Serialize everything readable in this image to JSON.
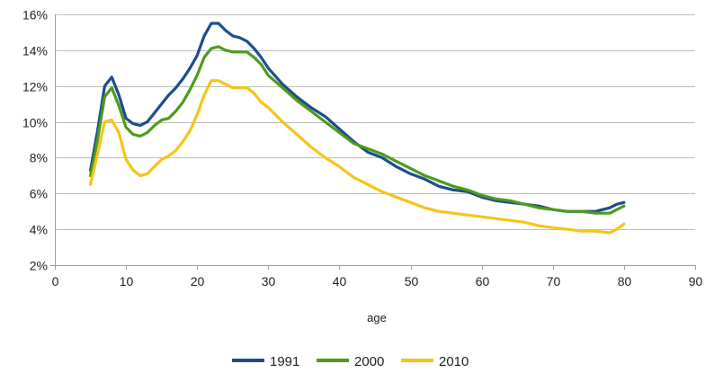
{
  "chart_data": {
    "type": "line",
    "title": "",
    "xlabel": "age",
    "ylabel": "",
    "xlim": [
      0,
      90
    ],
    "ylim": [
      2,
      16
    ],
    "x_ticks": [
      0,
      10,
      20,
      30,
      40,
      50,
      60,
      70,
      80,
      90
    ],
    "y_ticks": [
      2,
      4,
      6,
      8,
      10,
      12,
      14,
      16
    ],
    "y_tick_suffix": "%",
    "grid": "horizontal",
    "legend_position": "bottom",
    "series": [
      {
        "name": "1991",
        "color": "#1d4e89",
        "points": [
          [
            5,
            7.3
          ],
          [
            6,
            9.5
          ],
          [
            7,
            12.0
          ],
          [
            8,
            12.5
          ],
          [
            9,
            11.5
          ],
          [
            10,
            10.2
          ],
          [
            11,
            9.9
          ],
          [
            12,
            9.8
          ],
          [
            13,
            10.0
          ],
          [
            14,
            10.5
          ],
          [
            15,
            11.0
          ],
          [
            16,
            11.5
          ],
          [
            17,
            11.9
          ],
          [
            18,
            12.4
          ],
          [
            19,
            13.0
          ],
          [
            20,
            13.7
          ],
          [
            21,
            14.8
          ],
          [
            22,
            15.5
          ],
          [
            23,
            15.5
          ],
          [
            24,
            15.1
          ],
          [
            25,
            14.8
          ],
          [
            26,
            14.7
          ],
          [
            27,
            14.5
          ],
          [
            28,
            14.1
          ],
          [
            29,
            13.6
          ],
          [
            30,
            13.0
          ],
          [
            32,
            12.1
          ],
          [
            34,
            11.4
          ],
          [
            36,
            10.8
          ],
          [
            38,
            10.3
          ],
          [
            40,
            9.6
          ],
          [
            42,
            8.9
          ],
          [
            44,
            8.3
          ],
          [
            46,
            8.0
          ],
          [
            48,
            7.5
          ],
          [
            50,
            7.1
          ],
          [
            52,
            6.8
          ],
          [
            54,
            6.4
          ],
          [
            56,
            6.2
          ],
          [
            58,
            6.1
          ],
          [
            60,
            5.8
          ],
          [
            62,
            5.6
          ],
          [
            64,
            5.5
          ],
          [
            66,
            5.4
          ],
          [
            68,
            5.3
          ],
          [
            70,
            5.1
          ],
          [
            72,
            5.0
          ],
          [
            74,
            5.0
          ],
          [
            76,
            5.0
          ],
          [
            78,
            5.2
          ],
          [
            79,
            5.4
          ],
          [
            80,
            5.5
          ]
        ]
      },
      {
        "name": "2000",
        "color": "#4e9a1e",
        "points": [
          [
            5,
            7.0
          ],
          [
            6,
            9.0
          ],
          [
            7,
            11.4
          ],
          [
            8,
            11.9
          ],
          [
            9,
            10.9
          ],
          [
            10,
            9.7
          ],
          [
            11,
            9.3
          ],
          [
            12,
            9.2
          ],
          [
            13,
            9.4
          ],
          [
            14,
            9.8
          ],
          [
            15,
            10.1
          ],
          [
            16,
            10.2
          ],
          [
            17,
            10.6
          ],
          [
            18,
            11.1
          ],
          [
            19,
            11.8
          ],
          [
            20,
            12.6
          ],
          [
            21,
            13.6
          ],
          [
            22,
            14.1
          ],
          [
            23,
            14.2
          ],
          [
            24,
            14.0
          ],
          [
            25,
            13.9
          ],
          [
            26,
            13.9
          ],
          [
            27,
            13.9
          ],
          [
            28,
            13.6
          ],
          [
            29,
            13.2
          ],
          [
            30,
            12.6
          ],
          [
            32,
            11.9
          ],
          [
            34,
            11.2
          ],
          [
            36,
            10.6
          ],
          [
            38,
            10.0
          ],
          [
            40,
            9.4
          ],
          [
            42,
            8.8
          ],
          [
            44,
            8.5
          ],
          [
            46,
            8.2
          ],
          [
            48,
            7.8
          ],
          [
            50,
            7.4
          ],
          [
            52,
            7.0
          ],
          [
            54,
            6.7
          ],
          [
            56,
            6.4
          ],
          [
            58,
            6.2
          ],
          [
            60,
            5.9
          ],
          [
            62,
            5.7
          ],
          [
            64,
            5.6
          ],
          [
            66,
            5.4
          ],
          [
            68,
            5.2
          ],
          [
            70,
            5.1
          ],
          [
            72,
            5.0
          ],
          [
            74,
            5.0
          ],
          [
            76,
            4.9
          ],
          [
            78,
            4.9
          ],
          [
            79,
            5.1
          ],
          [
            80,
            5.3
          ]
        ]
      },
      {
        "name": "2010",
        "color": "#f5c518",
        "points": [
          [
            5,
            6.5
          ],
          [
            6,
            8.2
          ],
          [
            7,
            10.0
          ],
          [
            8,
            10.1
          ],
          [
            9,
            9.4
          ],
          [
            10,
            7.9
          ],
          [
            11,
            7.3
          ],
          [
            12,
            7.0
          ],
          [
            13,
            7.1
          ],
          [
            14,
            7.5
          ],
          [
            15,
            7.9
          ],
          [
            16,
            8.1
          ],
          [
            17,
            8.4
          ],
          [
            18,
            8.9
          ],
          [
            19,
            9.5
          ],
          [
            20,
            10.4
          ],
          [
            21,
            11.5
          ],
          [
            22,
            12.3
          ],
          [
            23,
            12.3
          ],
          [
            24,
            12.1
          ],
          [
            25,
            11.9
          ],
          [
            26,
            11.9
          ],
          [
            27,
            11.9
          ],
          [
            28,
            11.6
          ],
          [
            29,
            11.1
          ],
          [
            30,
            10.8
          ],
          [
            32,
            10.0
          ],
          [
            34,
            9.3
          ],
          [
            36,
            8.6
          ],
          [
            38,
            8.0
          ],
          [
            40,
            7.5
          ],
          [
            42,
            6.9
          ],
          [
            44,
            6.5
          ],
          [
            46,
            6.1
          ],
          [
            48,
            5.8
          ],
          [
            50,
            5.5
          ],
          [
            52,
            5.2
          ],
          [
            54,
            5.0
          ],
          [
            56,
            4.9
          ],
          [
            58,
            4.8
          ],
          [
            60,
            4.7
          ],
          [
            62,
            4.6
          ],
          [
            64,
            4.5
          ],
          [
            66,
            4.4
          ],
          [
            68,
            4.2
          ],
          [
            70,
            4.1
          ],
          [
            72,
            4.0
          ],
          [
            74,
            3.9
          ],
          [
            76,
            3.9
          ],
          [
            78,
            3.8
          ],
          [
            79,
            4.0
          ],
          [
            80,
            4.3
          ]
        ]
      }
    ]
  }
}
